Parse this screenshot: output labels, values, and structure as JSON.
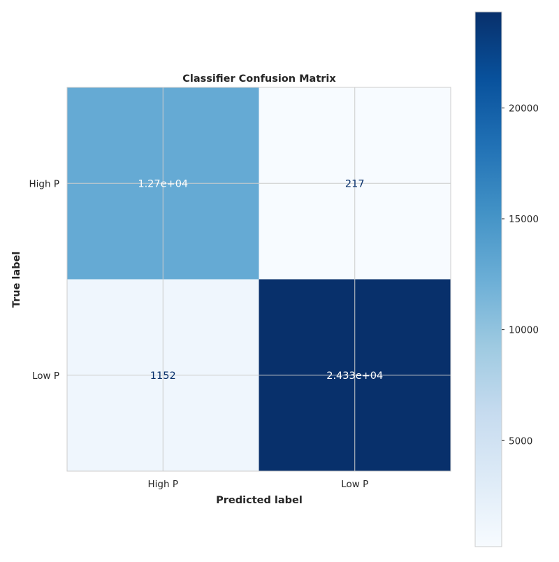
{
  "chart_data": {
    "type": "heatmap",
    "title": "Classifier Confusion Matrix",
    "xlabel": "Predicted label",
    "ylabel": "True label",
    "x_categories": [
      "High P",
      "Low P"
    ],
    "y_categories": [
      "High P",
      "Low P"
    ],
    "values": [
      [
        12700,
        217
      ],
      [
        1152,
        24330
      ]
    ],
    "value_labels": [
      [
        "1.27e+04",
        "217"
      ],
      [
        "1152",
        "2.433e+04"
      ]
    ],
    "colormap": "Blues",
    "colorbar": {
      "min": 217,
      "max": 24330,
      "ticks": [
        5000,
        10000,
        15000,
        20000
      ],
      "tick_labels": [
        "5000",
        "10000",
        "15000",
        "20000"
      ]
    },
    "grid": true,
    "text_colors": {
      "dark": "#08306b",
      "light": "#ffffff"
    }
  }
}
